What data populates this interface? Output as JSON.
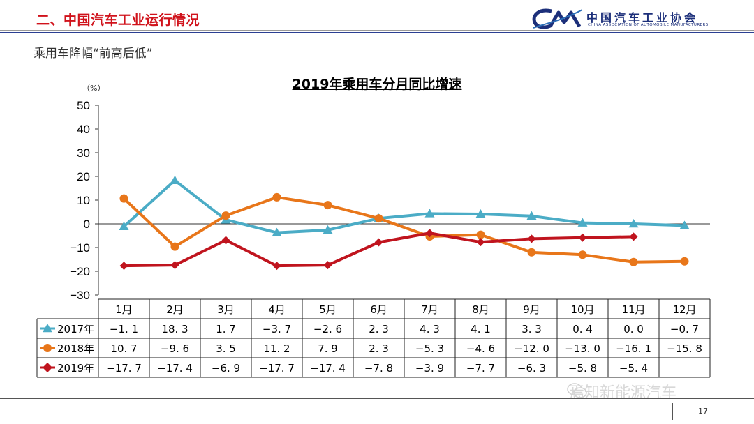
{
  "header": {
    "title": "二、中国汽车工业运行情况",
    "logo_cn": "中国汽车工业协会",
    "logo_en": "CHINA ASSOCIATION OF AUTOMOBILE MANUFACTURERS",
    "logo_mark": "CAM"
  },
  "subtitle": "乘用车降幅“前高后低”",
  "footer": {
    "page_number": "17",
    "watermark": "焉知新能源汽车"
  },
  "colors": {
    "s2017": "#4bacc6",
    "s2018": "#e8761a",
    "s2019": "#c0141e",
    "title_red": "#d0121b",
    "brand_blue": "#2b3f93"
  },
  "chart_data": {
    "type": "line",
    "title": "2019年乘用车分月同比增速",
    "unit_label": "（%）",
    "xlabel": "",
    "ylabel": "",
    "ylim": [
      -30,
      50
    ],
    "yticks": [
      "50",
      "40",
      "30",
      "20",
      "10",
      "0",
      "−10",
      "−20",
      "−30"
    ],
    "categories": [
      "1月",
      "2月",
      "3月",
      "4月",
      "5月",
      "6月",
      "7月",
      "8月",
      "9月",
      "10月",
      "11月",
      "12月"
    ],
    "grid": false,
    "legend": "data-table",
    "series": [
      {
        "name": "2017年",
        "marker": "triangle",
        "values": [
          -1.1,
          18.3,
          1.7,
          -3.7,
          -2.6,
          2.3,
          4.3,
          4.1,
          3.3,
          0.4,
          0.0,
          -0.7
        ],
        "labels": [
          "−1. 1",
          "18. 3",
          "1. 7",
          "−3. 7",
          "−2. 6",
          "2. 3",
          "4. 3",
          "4. 1",
          "3. 3",
          "0. 4",
          "0. 0",
          "−0. 7"
        ]
      },
      {
        "name": "2018年",
        "marker": "circle",
        "values": [
          10.7,
          -9.6,
          3.5,
          11.2,
          7.9,
          2.3,
          -5.3,
          -4.6,
          -12.0,
          -13.0,
          -16.1,
          -15.8
        ],
        "labels": [
          "10. 7",
          "−9. 6",
          "3. 5",
          "11. 2",
          "7. 9",
          "2. 3",
          "−5. 3",
          "−4. 6",
          "−12. 0",
          "−13. 0",
          "−16. 1",
          "−15. 8"
        ]
      },
      {
        "name": "2019年",
        "marker": "diamond",
        "values": [
          -17.7,
          -17.4,
          -6.9,
          -17.7,
          -17.4,
          -7.8,
          -3.9,
          -7.7,
          -6.3,
          -5.8,
          -5.4,
          null
        ],
        "labels": [
          "−17. 7",
          "−17. 4",
          "−6. 9",
          "−17. 7",
          "−17. 4",
          "−7. 8",
          "−3. 9",
          "−7. 7",
          "−6. 3",
          "−5. 8",
          "−5. 4",
          ""
        ]
      }
    ]
  }
}
